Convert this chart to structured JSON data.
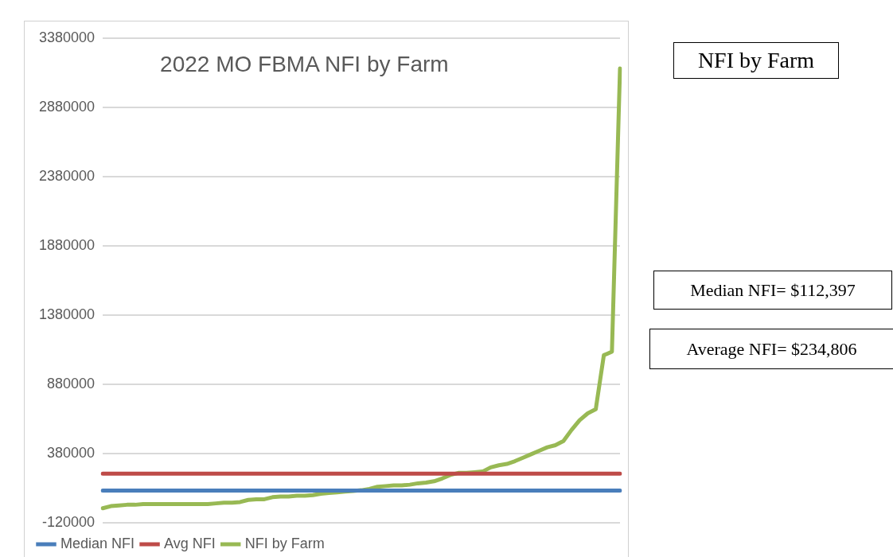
{
  "chart_data": {
    "type": "line",
    "title": "2022 MO FBMA NFI by Farm",
    "categories": [
      null,
      null,
      null,
      null,
      null,
      null,
      null,
      null,
      null,
      null,
      null,
      null,
      null,
      null,
      null,
      null,
      null,
      null,
      null,
      null,
      null,
      null,
      null,
      null,
      null,
      null,
      null,
      null,
      null,
      null,
      null,
      null,
      null,
      null,
      null,
      null,
      null,
      null,
      null,
      null,
      null,
      null,
      null,
      null,
      null,
      null,
      null,
      null,
      null,
      null,
      null,
      null,
      null,
      null,
      null,
      null,
      null,
      null,
      null,
      null,
      null,
      null,
      null,
      null,
      null
    ],
    "series": [
      {
        "name": "Median NFI",
        "color": "#4a7ebb",
        "values": [
          112397,
          112397,
          112397,
          112397,
          112397,
          112397,
          112397,
          112397,
          112397,
          112397,
          112397,
          112397,
          112397,
          112397,
          112397,
          112397,
          112397,
          112397,
          112397,
          112397,
          112397,
          112397,
          112397,
          112397,
          112397,
          112397,
          112397,
          112397,
          112397,
          112397,
          112397,
          112397,
          112397,
          112397,
          112397,
          112397,
          112397,
          112397,
          112397,
          112397,
          112397,
          112397,
          112397,
          112397,
          112397,
          112397,
          112397,
          112397,
          112397,
          112397,
          112397,
          112397,
          112397,
          112397,
          112397,
          112397,
          112397,
          112397,
          112397,
          112397,
          112397,
          112397,
          112397,
          112397,
          112397
        ]
      },
      {
        "name": "Avg NFI",
        "color": "#be4b48",
        "values": [
          234806,
          234806,
          234806,
          234806,
          234806,
          234806,
          234806,
          234806,
          234806,
          234806,
          234806,
          234806,
          234806,
          234806,
          234806,
          234806,
          234806,
          234806,
          234806,
          234806,
          234806,
          234806,
          234806,
          234806,
          234806,
          234806,
          234806,
          234806,
          234806,
          234806,
          234806,
          234806,
          234806,
          234806,
          234806,
          234806,
          234806,
          234806,
          234806,
          234806,
          234806,
          234806,
          234806,
          234806,
          234806,
          234806,
          234806,
          234806,
          234806,
          234806,
          234806,
          234806,
          234806,
          234806,
          234806,
          234806,
          234806,
          234806,
          234806,
          234806,
          234806,
          234806,
          234806,
          234806,
          234806
        ]
      },
      {
        "name": "NFI by Farm",
        "color": "#98b954",
        "values": [
          -15000,
          0,
          5000,
          10000,
          10000,
          15000,
          15000,
          15000,
          15000,
          15000,
          15000,
          15000,
          15000,
          15000,
          20000,
          25000,
          25000,
          30000,
          45000,
          50000,
          50000,
          65000,
          70000,
          70000,
          75000,
          75000,
          80000,
          90000,
          95000,
          100000,
          105000,
          110000,
          115000,
          125000,
          140000,
          145000,
          150000,
          150000,
          155000,
          165000,
          170000,
          180000,
          200000,
          225000,
          240000,
          240000,
          245000,
          250000,
          280000,
          295000,
          305000,
          325000,
          350000,
          375000,
          400000,
          425000,
          440000,
          470000,
          550000,
          620000,
          670000,
          700000,
          1090000,
          1115000,
          3160000
        ]
      }
    ],
    "ylim": [
      -120000,
      3380000
    ],
    "yticks": [
      -120000,
      380000,
      880000,
      1380000,
      1880000,
      2380000,
      2880000,
      3380000
    ],
    "grid": "y",
    "legend": "bottom",
    "marker": "none",
    "line_style": "solid",
    "tick_labels": "y",
    "annotations": [
      "NFI by Farm",
      "Median NFI= $112,397",
      "Average NFI= $234,806"
    ]
  }
}
